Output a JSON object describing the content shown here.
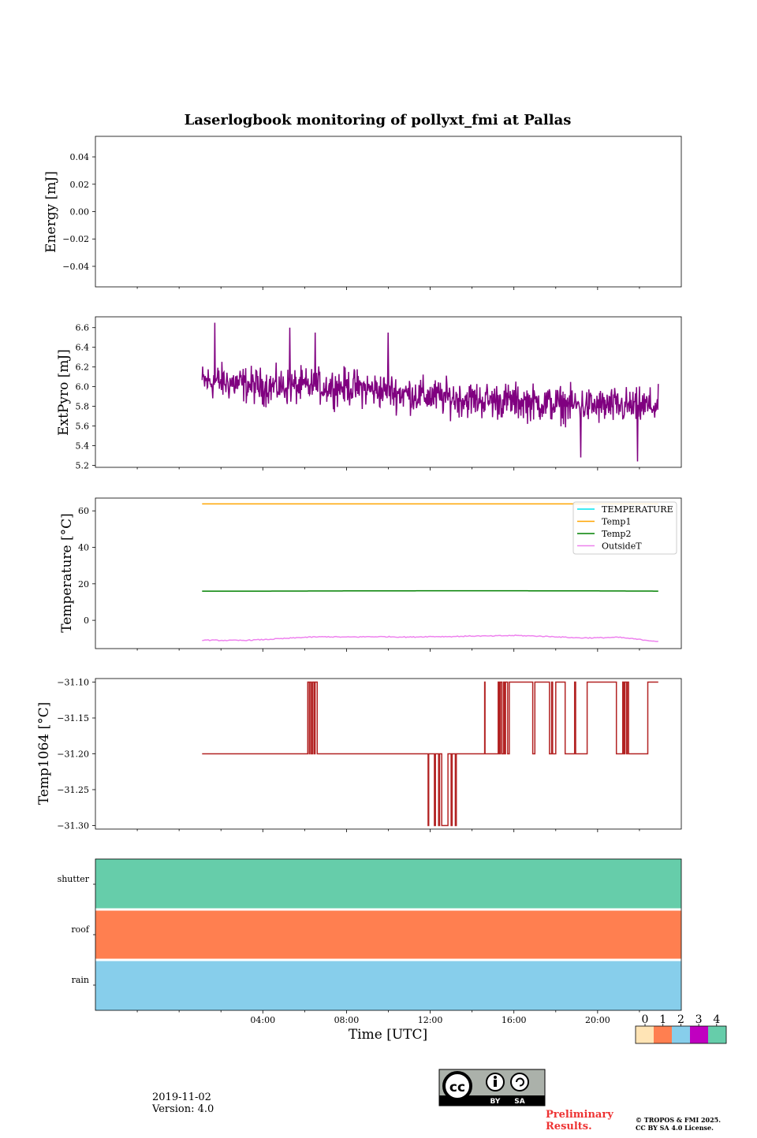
{
  "title": "Laserlogbook monitoring of pollyxt_fmi at Pallas",
  "x_axis": {
    "label": "Time [UTC]",
    "range_hours": [
      -4,
      24
    ],
    "data_range_hours": [
      1.1,
      22.9
    ],
    "ticks": [
      {
        "h": 4,
        "label": "04:00"
      },
      {
        "h": 8,
        "label": "08:00"
      },
      {
        "h": 12,
        "label": "12:00"
      },
      {
        "h": 16,
        "label": "16:00"
      },
      {
        "h": 20,
        "label": "20:00"
      }
    ]
  },
  "energy_ylabel": "Energy [mJ]",
  "pyro_ylabel": "ExtPyro [mJ]",
  "temp_ylabel": "Temperature [°C]",
  "t1064_ylabel": "Temp1064 [°C]",
  "chart_data": [
    {
      "type": "line",
      "panel": "energy",
      "ylabel": "Energy [mJ]",
      "ylim": [
        -0.055,
        0.055
      ],
      "yticks": [
        {
          "v": 0.04,
          "label": "0.04"
        },
        {
          "v": 0.02,
          "label": "0.02"
        },
        {
          "v": 0.0,
          "label": "0.00"
        },
        {
          "v": -0.02,
          "label": "−0.02"
        },
        {
          "v": -0.04,
          "label": "−0.04"
        }
      ],
      "series": []
    },
    {
      "type": "line",
      "panel": "pyro",
      "ylabel": "ExtPyro [mJ]",
      "ylim": [
        5.18,
        6.71
      ],
      "yticks": [
        {
          "v": 5.2,
          "label": "5.2"
        },
        {
          "v": 5.4,
          "label": "5.4"
        },
        {
          "v": 5.6,
          "label": "5.6"
        },
        {
          "v": 5.8,
          "label": "5.8"
        },
        {
          "v": 6.0,
          "label": "6.0"
        },
        {
          "v": 6.2,
          "label": "6.2"
        },
        {
          "v": 6.4,
          "label": "6.4"
        },
        {
          "v": 6.6,
          "label": "6.6"
        }
      ],
      "series": [
        {
          "name": "ExtPyro",
          "color": "#800080",
          "x": [
            1.1,
            2.0,
            4.0,
            6.0,
            8.0,
            10.0,
            12.0,
            14.0,
            16.0,
            18.0,
            20.0,
            22.0,
            22.9
          ],
          "y": [
            6.05,
            6.05,
            6.0,
            6.0,
            6.0,
            5.95,
            5.9,
            5.87,
            5.85,
            5.82,
            5.8,
            5.8,
            5.8
          ],
          "noise": 0.14,
          "spikes": [
            {
              "x": 1.7,
              "y": 6.65
            },
            {
              "x": 5.3,
              "y": 6.6
            },
            {
              "x": 6.5,
              "y": 6.55
            },
            {
              "x": 10.0,
              "y": 6.55
            },
            {
              "x": 19.2,
              "y": 5.28
            },
            {
              "x": 21.9,
              "y": 5.24
            }
          ]
        }
      ]
    },
    {
      "type": "line",
      "panel": "temperature",
      "ylabel": "Temperature [°C]",
      "ylim": [
        -15.5,
        67
      ],
      "yticks": [
        {
          "v": 0,
          "label": "0"
        },
        {
          "v": 20,
          "label": "20"
        },
        {
          "v": 40,
          "label": "40"
        },
        {
          "v": 60,
          "label": "60"
        }
      ],
      "legend_position": "top-right",
      "series": [
        {
          "name": "TEMPERATURE",
          "color": "#00e5ee",
          "x": [],
          "y": []
        },
        {
          "name": "Temp1",
          "color": "#ffa500",
          "x": [
            1.1,
            22.9
          ],
          "y": [
            63.8,
            63.8
          ]
        },
        {
          "name": "Temp2",
          "color": "#008000",
          "x": [
            1.1,
            4.0,
            8.0,
            12.0,
            16.0,
            20.0,
            22.9
          ],
          "y": [
            16.0,
            16.0,
            16.1,
            16.2,
            16.2,
            16.1,
            16.0
          ]
        },
        {
          "name": "OutsideT",
          "color": "#ee82ee",
          "x": [
            1.1,
            2.0,
            3.0,
            4.0,
            5.0,
            6.0,
            7.0,
            8.0,
            9.0,
            10.0,
            11.0,
            12.0,
            13.0,
            14.0,
            15.0,
            16.0,
            17.0,
            18.0,
            19.0,
            20.0,
            21.0,
            22.0,
            22.9
          ],
          "y": [
            -10.8,
            -11.0,
            -11.0,
            -10.6,
            -10.0,
            -9.3,
            -9.0,
            -9.2,
            -9.0,
            -9.0,
            -9.2,
            -8.9,
            -8.9,
            -8.6,
            -8.6,
            -8.3,
            -8.6,
            -9.0,
            -9.6,
            -9.6,
            -9.3,
            -10.5,
            -11.6
          ]
        }
      ]
    },
    {
      "type": "line",
      "panel": "temp1064",
      "ylabel": "Temp1064 [°C]",
      "ylim": [
        -31.305,
        -31.095
      ],
      "yticks": [
        {
          "v": -31.1,
          "label": "−31.10"
        },
        {
          "v": -31.15,
          "label": "−31.15"
        },
        {
          "v": -31.2,
          "label": "−31.20"
        },
        {
          "v": -31.25,
          "label": "−31.25"
        },
        {
          "v": -31.3,
          "label": "−31.30"
        }
      ],
      "series": [
        {
          "name": "Temp1064",
          "color": "#b22222",
          "baseline": -31.2,
          "pulses": [
            {
              "x0": 6.15,
              "x1": 6.22,
              "y": -31.1
            },
            {
              "x0": 6.25,
              "x1": 6.32,
              "y": -31.1
            },
            {
              "x0": 6.38,
              "x1": 6.45,
              "y": -31.1
            },
            {
              "x0": 6.5,
              "x1": 6.6,
              "y": -31.1
            },
            {
              "x0": 11.9,
              "x1": 11.93,
              "y": -31.3
            },
            {
              "x0": 12.2,
              "x1": 12.25,
              "y": -31.3
            },
            {
              "x0": 12.4,
              "x1": 12.45,
              "y": -31.3
            },
            {
              "x0": 12.55,
              "x1": 12.85,
              "y": -31.3
            },
            {
              "x0": 13.0,
              "x1": 13.05,
              "y": -31.3
            },
            {
              "x0": 13.2,
              "x1": 13.25,
              "y": -31.3
            },
            {
              "x0": 14.6,
              "x1": 14.62,
              "y": -31.1
            },
            {
              "x0": 15.25,
              "x1": 15.3,
              "y": -31.1
            },
            {
              "x0": 15.35,
              "x1": 15.42,
              "y": -31.1
            },
            {
              "x0": 15.5,
              "x1": 15.55,
              "y": -31.1
            },
            {
              "x0": 15.6,
              "x1": 15.7,
              "y": -31.1
            },
            {
              "x0": 15.78,
              "x1": 16.9,
              "y": -31.1
            },
            {
              "x0": 17.0,
              "x1": 17.7,
              "y": -31.1
            },
            {
              "x0": 17.8,
              "x1": 17.85,
              "y": -31.1
            },
            {
              "x0": 18.0,
              "x1": 18.45,
              "y": -31.1
            },
            {
              "x0": 18.9,
              "x1": 18.95,
              "y": -31.1
            },
            {
              "x0": 19.5,
              "x1": 20.9,
              "y": -31.1
            },
            {
              "x0": 21.2,
              "x1": 21.25,
              "y": -31.1
            },
            {
              "x0": 21.3,
              "x1": 21.38,
              "y": -31.1
            },
            {
              "x0": 21.42,
              "x1": 21.48,
              "y": -31.1
            },
            {
              "x0": 22.4,
              "x1": 22.9,
              "y": -31.1
            }
          ]
        }
      ]
    },
    {
      "type": "heatmap",
      "panel": "status",
      "rows": [
        "shutter",
        "roof",
        "rain"
      ],
      "row_values": [
        4,
        1,
        2
      ],
      "colorbar": {
        "labels": [
          "0",
          "1",
          "2",
          "3",
          "4"
        ],
        "colors": [
          "#ffe4b5",
          "#ff7f50",
          "#87ceeb",
          "#c000c0",
          "#66cdaa"
        ]
      }
    }
  ],
  "footer": {
    "date": "2019-11-02",
    "version": "Version: 4.0",
    "cc_by": "BY",
    "cc_sa": "SA",
    "preliminary_line1": "Preliminary",
    "preliminary_line2": "Results.",
    "copyright_line1": "© TROPOS & FMI 2025.",
    "copyright_line2": "CC BY SA 4.0 License."
  },
  "colors": {
    "preliminary": "#ee3333",
    "cc_grey": "#abb1aa"
  }
}
